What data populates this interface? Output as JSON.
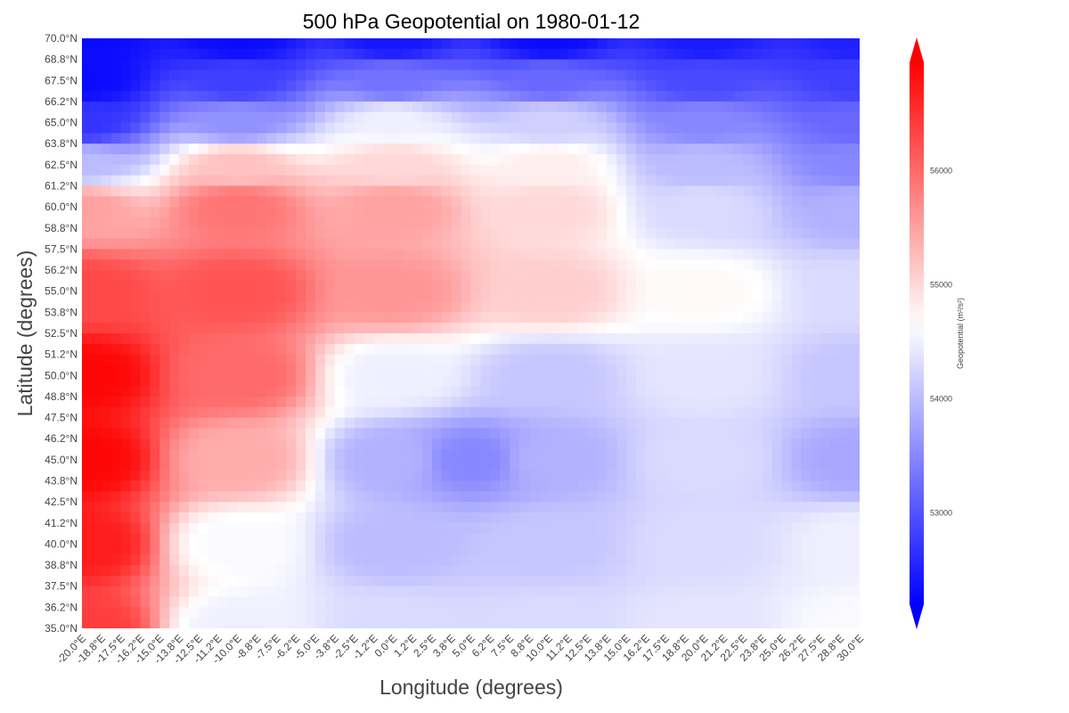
{
  "chart_data": {
    "type": "heatmap",
    "title": "500 hPa Geopotential on 1980-01-12",
    "xlabel": "Longitude (degrees)",
    "ylabel": "Latitude (degrees)",
    "x_ticks": [
      "-20.0°E",
      "-18.8°E",
      "-17.5°E",
      "-16.2°E",
      "-15.0°E",
      "-13.8°E",
      "-12.5°E",
      "-11.2°E",
      "-10.0°E",
      "-8.8°E",
      "-7.5°E",
      "-6.2°E",
      "-5.0°E",
      "-3.8°E",
      "-2.5°E",
      "-1.2°E",
      "0.0°E",
      "1.2°E",
      "2.5°E",
      "3.8°E",
      "5.0°E",
      "6.2°E",
      "7.5°E",
      "8.8°E",
      "10.0°E",
      "11.2°E",
      "12.5°E",
      "13.8°E",
      "15.0°E",
      "16.2°E",
      "17.5°E",
      "18.8°E",
      "20.0°E",
      "21.2°E",
      "22.5°E",
      "23.8°E",
      "25.0°E",
      "26.2°E",
      "27.5°E",
      "28.8°E",
      "30.0°E"
    ],
    "y_ticks": [
      "70.0°N",
      "68.8°N",
      "67.5°N",
      "66.2°N",
      "65.0°N",
      "63.8°N",
      "62.5°N",
      "61.2°N",
      "60.0°N",
      "58.8°N",
      "57.5°N",
      "56.2°N",
      "55.0°N",
      "53.8°N",
      "52.5°N",
      "51.2°N",
      "50.0°N",
      "48.8°N",
      "47.5°N",
      "46.2°N",
      "45.0°N",
      "43.8°N",
      "42.5°N",
      "41.2°N",
      "40.0°N",
      "38.8°N",
      "37.5°N",
      "36.2°N",
      "35.0°N"
    ],
    "xlim": [
      -20.0,
      30.0
    ],
    "ylim": [
      35.0,
      70.0
    ],
    "colorbar": {
      "label": "Geopotential (m²/s²)",
      "vmin": 52200,
      "vmax": 56950,
      "center": 54650,
      "ticks": [
        53000,
        54000,
        55000,
        56000
      ],
      "cmap": [
        "#0000ff",
        "#ffffff",
        "#ff0000"
      ],
      "extend": "both"
    },
    "grid": false,
    "field_points": [
      {
        "lon": -20.0,
        "lat": 70.0,
        "value": 52300
      },
      {
        "lon": -10.0,
        "lat": 70.0,
        "value": 52300
      },
      {
        "lon": 0.0,
        "lat": 70.0,
        "value": 52400
      },
      {
        "lon": 10.0,
        "lat": 70.0,
        "value": 52300
      },
      {
        "lon": 20.0,
        "lat": 70.0,
        "value": 52450
      },
      {
        "lon": 30.0,
        "lat": 70.0,
        "value": 52500
      },
      {
        "lon": -20.0,
        "lat": 67.5,
        "value": 52300
      },
      {
        "lon": -10.0,
        "lat": 67.5,
        "value": 52800
      },
      {
        "lon": 0.0,
        "lat": 67.5,
        "value": 53300
      },
      {
        "lon": 10.0,
        "lat": 67.5,
        "value": 53200
      },
      {
        "lon": 20.0,
        "lat": 67.5,
        "value": 52900
      },
      {
        "lon": 30.0,
        "lat": 67.5,
        "value": 52800
      },
      {
        "lon": -20.0,
        "lat": 65.0,
        "value": 52700
      },
      {
        "lon": -10.0,
        "lat": 65.0,
        "value": 53600
      },
      {
        "lon": 0.0,
        "lat": 65.0,
        "value": 54500
      },
      {
        "lon": 10.0,
        "lat": 65.0,
        "value": 54200
      },
      {
        "lon": 20.0,
        "lat": 65.0,
        "value": 53500
      },
      {
        "lon": 30.0,
        "lat": 65.0,
        "value": 53200
      },
      {
        "lon": -20.0,
        "lat": 62.5,
        "value": 54000
      },
      {
        "lon": -10.0,
        "lat": 62.5,
        "value": 55200
      },
      {
        "lon": 0.0,
        "lat": 62.5,
        "value": 55000
      },
      {
        "lon": 10.0,
        "lat": 62.5,
        "value": 54800
      },
      {
        "lon": 20.0,
        "lat": 62.5,
        "value": 54000
      },
      {
        "lon": 30.0,
        "lat": 62.5,
        "value": 53500
      },
      {
        "lon": -20.0,
        "lat": 60.0,
        "value": 55500
      },
      {
        "lon": -10.0,
        "lat": 60.0,
        "value": 55900
      },
      {
        "lon": 0.0,
        "lat": 60.0,
        "value": 55500
      },
      {
        "lon": 10.0,
        "lat": 60.0,
        "value": 55000
      },
      {
        "lon": 20.0,
        "lat": 60.0,
        "value": 54300
      },
      {
        "lon": 30.0,
        "lat": 60.0,
        "value": 53900
      },
      {
        "lon": -20.0,
        "lat": 55.0,
        "value": 56300
      },
      {
        "lon": -10.0,
        "lat": 55.0,
        "value": 56200
      },
      {
        "lon": 0.0,
        "lat": 55.0,
        "value": 55600
      },
      {
        "lon": 10.0,
        "lat": 55.0,
        "value": 55100
      },
      {
        "lon": 20.0,
        "lat": 55.0,
        "value": 54700
      },
      {
        "lon": 30.0,
        "lat": 55.0,
        "value": 54300
      },
      {
        "lon": -20.0,
        "lat": 50.0,
        "value": 56900
      },
      {
        "lon": -10.0,
        "lat": 50.0,
        "value": 56000
      },
      {
        "lon": 0.0,
        "lat": 50.0,
        "value": 54500
      },
      {
        "lon": 10.0,
        "lat": 50.0,
        "value": 54100
      },
      {
        "lon": 20.0,
        "lat": 50.0,
        "value": 54400
      },
      {
        "lon": 30.0,
        "lat": 50.0,
        "value": 54100
      },
      {
        "lon": -20.0,
        "lat": 45.0,
        "value": 56900
      },
      {
        "lon": -10.0,
        "lat": 45.0,
        "value": 55400
      },
      {
        "lon": 0.0,
        "lat": 45.0,
        "value": 53900
      },
      {
        "lon": 5.0,
        "lat": 45.0,
        "value": 53500
      },
      {
        "lon": 10.0,
        "lat": 45.0,
        "value": 53900
      },
      {
        "lon": 20.0,
        "lat": 45.0,
        "value": 54300
      },
      {
        "lon": 30.0,
        "lat": 45.0,
        "value": 53800
      },
      {
        "lon": -20.0,
        "lat": 40.0,
        "value": 56700
      },
      {
        "lon": -10.0,
        "lat": 40.0,
        "value": 54600
      },
      {
        "lon": 0.0,
        "lat": 40.0,
        "value": 54000
      },
      {
        "lon": 10.0,
        "lat": 40.0,
        "value": 54100
      },
      {
        "lon": 20.0,
        "lat": 40.0,
        "value": 54300
      },
      {
        "lon": 30.0,
        "lat": 40.0,
        "value": 54500
      },
      {
        "lon": -20.0,
        "lat": 35.0,
        "value": 56400
      },
      {
        "lon": -10.0,
        "lat": 35.0,
        "value": 54500
      },
      {
        "lon": 0.0,
        "lat": 35.0,
        "value": 54300
      },
      {
        "lon": 10.0,
        "lat": 35.0,
        "value": 54300
      },
      {
        "lon": 20.0,
        "lat": 35.0,
        "value": 54400
      },
      {
        "lon": 30.0,
        "lat": 35.0,
        "value": 54600
      }
    ]
  }
}
